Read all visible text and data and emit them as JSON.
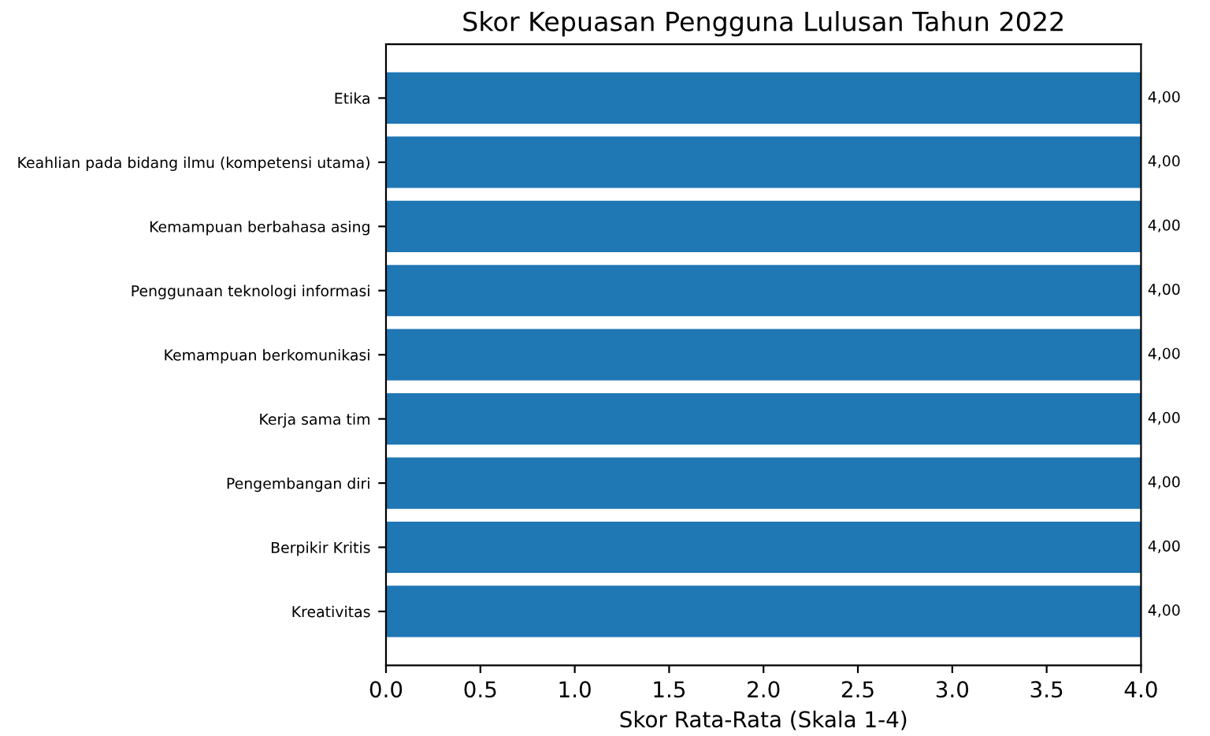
{
  "chart_data": {
    "type": "bar",
    "orientation": "horizontal",
    "title": "Skor Kepuasan Pengguna Lulusan Tahun 2022",
    "xlabel": "Skor Rata-Rata (Skala 1-4)",
    "categories": [
      "Etika",
      "Keahlian pada bidang ilmu (kompetensi utama)",
      "Kemampuan berbahasa asing",
      "Penggunaan teknologi informasi",
      "Kemampuan berkomunikasi",
      "Kerja sama tim",
      "Pengembangan diri",
      "Berpikir Kritis",
      "Kreativitas"
    ],
    "values": [
      4,
      4,
      4,
      4,
      4,
      4,
      4,
      4,
      4
    ],
    "value_labels": [
      "4,00",
      "4,00",
      "4,00",
      "4,00",
      "4,00",
      "4,00",
      "4,00",
      "4,00",
      "4,00"
    ],
    "color": "#1f77b4",
    "xlim": [
      0,
      4
    ],
    "xticks": [
      {
        "value": 0,
        "label": "0.0"
      },
      {
        "value": 0.5,
        "label": "0.5"
      },
      {
        "value": 1,
        "label": "1.0"
      },
      {
        "value": 1.5,
        "label": "1.5"
      },
      {
        "value": 2,
        "label": "2.0"
      },
      {
        "value": 2.5,
        "label": "2.5"
      },
      {
        "value": 3,
        "label": "3.0"
      },
      {
        "value": 3.5,
        "label": "3.5"
      },
      {
        "value": 4,
        "label": "4.0"
      }
    ],
    "grid": false
  }
}
